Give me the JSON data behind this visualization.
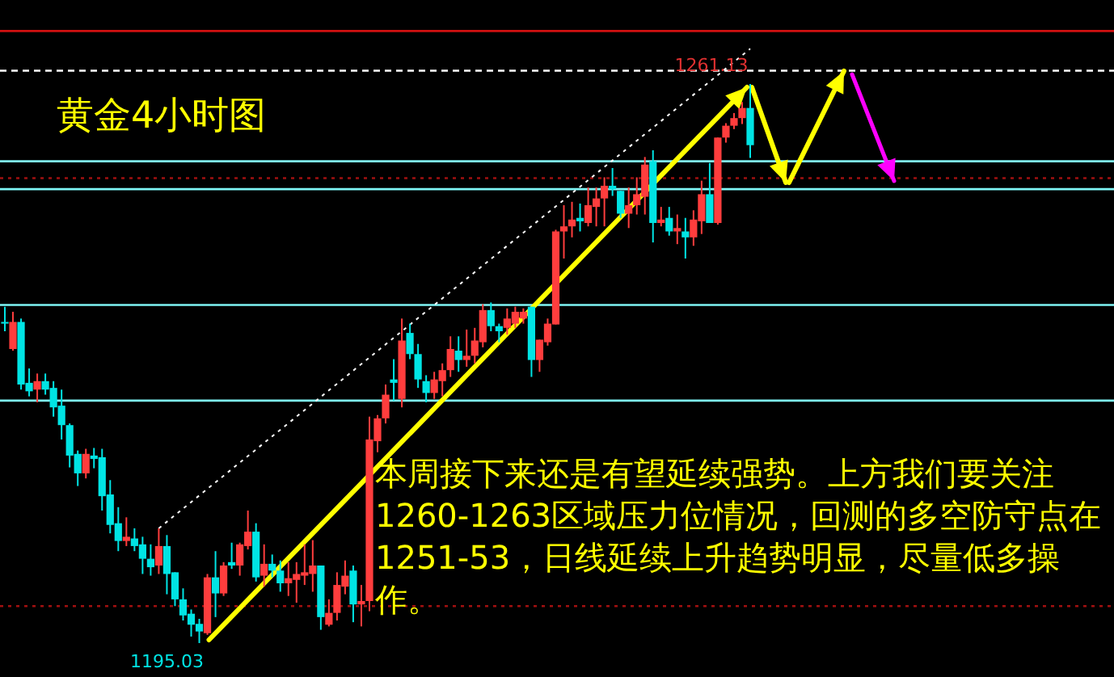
{
  "chart_data": {
    "type": "candlestick",
    "title": "黄金4小时图",
    "categories": [
      null,
      null,
      null,
      null,
      null,
      null,
      null,
      null,
      null,
      null,
      null,
      null,
      null,
      null,
      null,
      null,
      null,
      null,
      null,
      null,
      null,
      null,
      null,
      null,
      null,
      null,
      null,
      null,
      null,
      null,
      null,
      null,
      null,
      null,
      null,
      null,
      null,
      null,
      null,
      null,
      null,
      null,
      null,
      null,
      null,
      null,
      null,
      null,
      null,
      null,
      null,
      null,
      null,
      null,
      null,
      null,
      null,
      null,
      null,
      null,
      null,
      null,
      null,
      null,
      null,
      null,
      null,
      null,
      null,
      null,
      null,
      null,
      null,
      null,
      null,
      null,
      null,
      null,
      null,
      null,
      null,
      null,
      null,
      null,
      null,
      null,
      null,
      null,
      null,
      null,
      null,
      null,
      null
    ],
    "ohlc": [
      [
        1233.0,
        1234.8,
        1231.9,
        1232.8
      ],
      [
        1229.8,
        1234.2,
        1229.6,
        1233.0
      ],
      [
        1233.0,
        1233.4,
        1225.0,
        1225.6
      ],
      [
        1225.8,
        1227.5,
        1224.2,
        1224.8
      ],
      [
        1225.0,
        1226.9,
        1223.5,
        1226.0
      ],
      [
        1226.0,
        1226.9,
        1224.4,
        1225.0
      ],
      [
        1225.2,
        1226.0,
        1221.8,
        1222.9
      ],
      [
        1223.1,
        1225.0,
        1219.1,
        1220.8
      ],
      [
        1220.8,
        1221.0,
        1215.8,
        1217.2
      ],
      [
        1217.4,
        1217.8,
        1213.6,
        1215.1
      ],
      [
        1215.1,
        1218.0,
        1214.5,
        1217.4
      ],
      [
        1217.2,
        1218.1,
        1215.7,
        1216.8
      ],
      [
        1217.0,
        1218.0,
        1210.7,
        1212.4
      ],
      [
        1212.6,
        1214.3,
        1208.0,
        1209.0
      ],
      [
        1209.2,
        1211.1,
        1205.9,
        1207.1
      ],
      [
        1207.1,
        1209.9,
        1206.5,
        1207.6
      ],
      [
        1207.4,
        1208.6,
        1205.9,
        1206.5
      ],
      [
        1206.7,
        1207.6,
        1203.2,
        1205.0
      ],
      [
        1205.0,
        1206.7,
        1203.0,
        1204.0
      ],
      [
        1204.2,
        1208.6,
        1203.2,
        1206.5
      ],
      [
        1206.5,
        1207.8,
        1200.8,
        1203.2
      ],
      [
        1203.4,
        1203.4,
        1199.4,
        1200.2
      ],
      [
        1200.2,
        1201.5,
        1197.7,
        1198.3
      ],
      [
        1198.5,
        1199.0,
        1195.8,
        1197.2
      ],
      [
        1197.3,
        1197.9,
        1195.03,
        1196.4
      ],
      [
        1196.2,
        1203.2,
        1196.0,
        1202.8
      ],
      [
        1202.8,
        1205.9,
        1198.1,
        1200.9
      ],
      [
        1200.9,
        1204.6,
        1200.6,
        1204.2
      ],
      [
        1204.6,
        1206.9,
        1203.8,
        1204.2
      ],
      [
        1204.2,
        1206.9,
        1203.0,
        1206.7
      ],
      [
        1206.5,
        1210.7,
        1206.1,
        1208.2
      ],
      [
        1208.2,
        1209.2,
        1202.3,
        1202.8
      ],
      [
        1203.0,
        1206.7,
        1201.7,
        1204.4
      ],
      [
        1204.4,
        1205.5,
        1202.8,
        1203.6
      ],
      [
        1203.6,
        1204.8,
        1201.1,
        1202.1
      ],
      [
        1202.1,
        1204.6,
        1200.6,
        1202.7
      ],
      [
        1202.5,
        1204.6,
        1199.8,
        1203.2
      ],
      [
        1203.0,
        1206.7,
        1201.9,
        1203.4
      ],
      [
        1203.2,
        1207.2,
        1201.1,
        1204.2
      ],
      [
        1204.2,
        1204.2,
        1196.6,
        1198.1
      ],
      [
        1197.2,
        1200.2,
        1197.0,
        1198.6
      ],
      [
        1198.6,
        1203.4,
        1197.7,
        1201.9
      ],
      [
        1201.7,
        1204.8,
        1200.8,
        1203.0
      ],
      [
        1203.6,
        1204.2,
        1197.5,
        1199.6
      ],
      [
        1199.6,
        1201.9,
        1197.0,
        1200.0
      ],
      [
        1200.0,
        1221.8,
        1198.8,
        1219.1
      ],
      [
        1218.9,
        1222.0,
        1217.6,
        1221.6
      ],
      [
        1221.6,
        1225.6,
        1221.0,
        1224.4
      ],
      [
        1226.2,
        1228.6,
        1223.7,
        1225.8
      ],
      [
        1223.9,
        1233.4,
        1222.9,
        1230.8
      ],
      [
        1231.7,
        1232.8,
        1228.6,
        1229.2
      ],
      [
        1229.2,
        1230.4,
        1225.2,
        1226.2
      ],
      [
        1226.0,
        1226.7,
        1223.5,
        1224.6
      ],
      [
        1224.6,
        1227.1,
        1223.9,
        1226.2
      ],
      [
        1226.0,
        1228.1,
        1224.2,
        1227.3
      ],
      [
        1227.3,
        1231.3,
        1226.5,
        1229.8
      ],
      [
        1229.6,
        1231.3,
        1227.1,
        1228.5
      ],
      [
        1228.5,
        1232.1,
        1227.7,
        1229.0
      ],
      [
        1229.0,
        1232.3,
        1228.1,
        1230.8
      ],
      [
        1230.6,
        1235.1,
        1230.0,
        1234.4
      ],
      [
        1234.4,
        1235.3,
        1231.9,
        1232.5
      ],
      [
        1232.5,
        1232.8,
        1230.6,
        1231.9
      ],
      [
        1232.3,
        1234.6,
        1231.5,
        1233.4
      ],
      [
        1232.8,
        1234.8,
        1232.3,
        1234.2
      ],
      [
        1233.4,
        1234.6,
        1232.8,
        1234.2
      ],
      [
        1234.8,
        1234.8,
        1226.5,
        1228.5
      ],
      [
        1228.5,
        1230.9,
        1227.1,
        1230.9
      ],
      [
        1230.6,
        1233.4,
        1230.2,
        1232.8
      ],
      [
        1232.7,
        1243.9,
        1232.7,
        1243.7
      ],
      [
        1243.7,
        1246.8,
        1240.5,
        1244.3
      ],
      [
        1244.3,
        1247.2,
        1243.0,
        1245.1
      ],
      [
        1245.3,
        1247.0,
        1243.7,
        1244.9
      ],
      [
        1244.7,
        1248.9,
        1244.3,
        1246.8
      ],
      [
        1246.6,
        1248.9,
        1244.3,
        1247.6
      ],
      [
        1247.6,
        1250.1,
        1244.3,
        1249.1
      ],
      [
        1249.1,
        1251.2,
        1247.9,
        1248.7
      ],
      [
        1248.5,
        1248.5,
        1245.3,
        1245.8
      ],
      [
        1245.8,
        1248.9,
        1244.1,
        1246.8
      ],
      [
        1246.8,
        1250.1,
        1245.7,
        1248.1
      ],
      [
        1247.8,
        1252.5,
        1245.7,
        1251.6
      ],
      [
        1252.0,
        1253.3,
        1242.4,
        1244.7
      ],
      [
        1244.7,
        1246.6,
        1244.3,
        1245.1
      ],
      [
        1245.3,
        1246.6,
        1243.2,
        1243.7
      ],
      [
        1243.7,
        1245.7,
        1242.2,
        1244.1
      ],
      [
        1243.7,
        1245.3,
        1240.5,
        1243.0
      ],
      [
        1243.0,
        1246.2,
        1242.0,
        1245.1
      ],
      [
        1244.9,
        1249.7,
        1243.4,
        1248.1
      ],
      [
        1248.1,
        1251.8,
        1244.7,
        1244.7
      ],
      [
        1244.7,
        1254.8,
        1244.5,
        1254.8
      ],
      [
        1254.8,
        1256.5,
        1254.2,
        1256.2
      ],
      [
        1256.2,
        1257.7,
        1255.8,
        1257.1
      ],
      [
        1257.1,
        1259.0,
        1256.4,
        1258.3
      ],
      [
        1258.3,
        1261.13,
        1252.4,
        1253.9
      ]
    ],
    "ref_lines": [
      {
        "axis": "y",
        "value": 1267.4,
        "color": "#d01010",
        "line_style": "solid"
      },
      {
        "axis": "y",
        "value": 1262.7,
        "color": "#ffffff",
        "line_style": "dashed"
      },
      {
        "axis": "y",
        "value": 1250.0,
        "color": "#a01010",
        "line_style": "dotted"
      },
      {
        "axis": "y",
        "value": 1199.4,
        "color": "#a01010",
        "line_style": "dotted"
      },
      {
        "axis": "y",
        "value": 1252.0,
        "color": "#7ff5f5",
        "line_style": "solid"
      },
      {
        "axis": "y",
        "value": 1248.7,
        "color": "#7ff5f5",
        "line_style": "solid"
      },
      {
        "axis": "y",
        "value": 1235.0,
        "color": "#7ff5f5",
        "line_style": "solid"
      },
      {
        "axis": "y",
        "value": 1223.7,
        "color": "#7ff5f5",
        "line_style": "solid"
      }
    ],
    "series": [
      {
        "type": "line",
        "color": "#ffffff",
        "line_style": "dotted",
        "values": [
          null,
          null,
          null,
          null,
          null,
          null,
          null,
          null,
          null,
          null,
          null,
          null,
          null,
          null,
          null,
          null,
          null,
          null,
          null,
          1208.6,
          null,
          null,
          null,
          null,
          null,
          null,
          null,
          null,
          null,
          null,
          null,
          null,
          null,
          null,
          null,
          null,
          null,
          null,
          null,
          null,
          null,
          null,
          null,
          null,
          null,
          null,
          null,
          null,
          null,
          null,
          null,
          null,
          null,
          null,
          null,
          null,
          null,
          null,
          null,
          null,
          null,
          null,
          null,
          null,
          null,
          null,
          null,
          null,
          null,
          null,
          null,
          null,
          null,
          null,
          null,
          null,
          null,
          null,
          null,
          null,
          null,
          null,
          null,
          null,
          null,
          null,
          null,
          null,
          null,
          null,
          null,
          null,
          1265.3
        ]
      }
    ],
    "annotations": [
      "1261.13",
      "1195.03",
      "本周接下来还是有望延续强势。上方我们要关注1260-1263区域压力位情况，回测的多空防守点在1251-53，日线延续上升趋势明显，尽量低多操作。"
    ]
  }
}
